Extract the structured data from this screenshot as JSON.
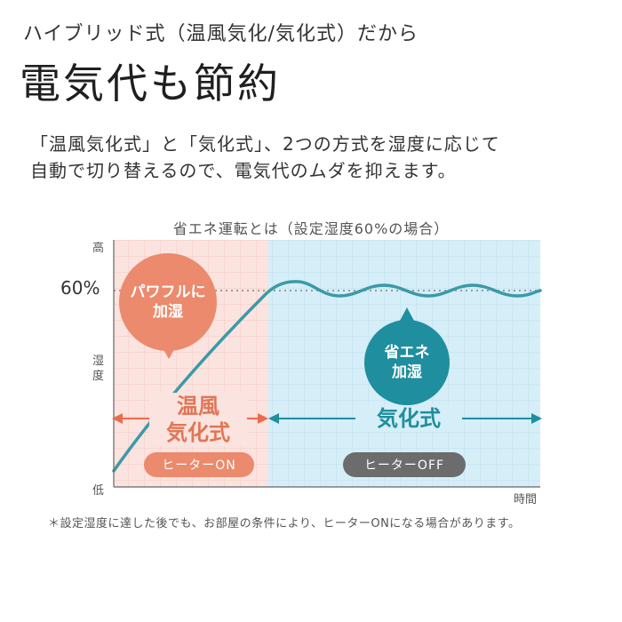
{
  "subtitle": "ハイブリッド式（温風気化/気化式）だから",
  "headline": "電気代も節約",
  "description": {
    "line1": "「温風気化式」と「気化式」、2つの方式を湿度に応じて",
    "line2": "自動で切り替えるので、電気代のムダを抑えます。"
  },
  "chart": {
    "title": "省エネ運転とは（設定湿度60%の場合）",
    "y_high": "高",
    "y_low": "低",
    "y_axis": "湿度",
    "y_marker": "60%",
    "x_axis": "時間",
    "bubble_power": {
      "line1": "パワフルに",
      "line2": "加湿"
    },
    "bubble_eco": {
      "line1": "省エネ",
      "line2": "加湿"
    },
    "mode_warm": {
      "line1": "温風",
      "line2": "気化式"
    },
    "mode_vaporize": "気化式",
    "pill_on": "ヒーターON",
    "pill_off": "ヒーターOFF",
    "colors": {
      "warm_zone": "#fbe3df",
      "cool_zone": "#d6eef7",
      "curve": "#3a9aa8",
      "warm_accent": "#ec8a6d",
      "cool_accent": "#1f8e9e",
      "heater_off": "#6c6c6c"
    }
  },
  "footnote": "＊設定湿度に達した後でも、お部屋の条件により、ヒーターONになる場合があります。"
}
